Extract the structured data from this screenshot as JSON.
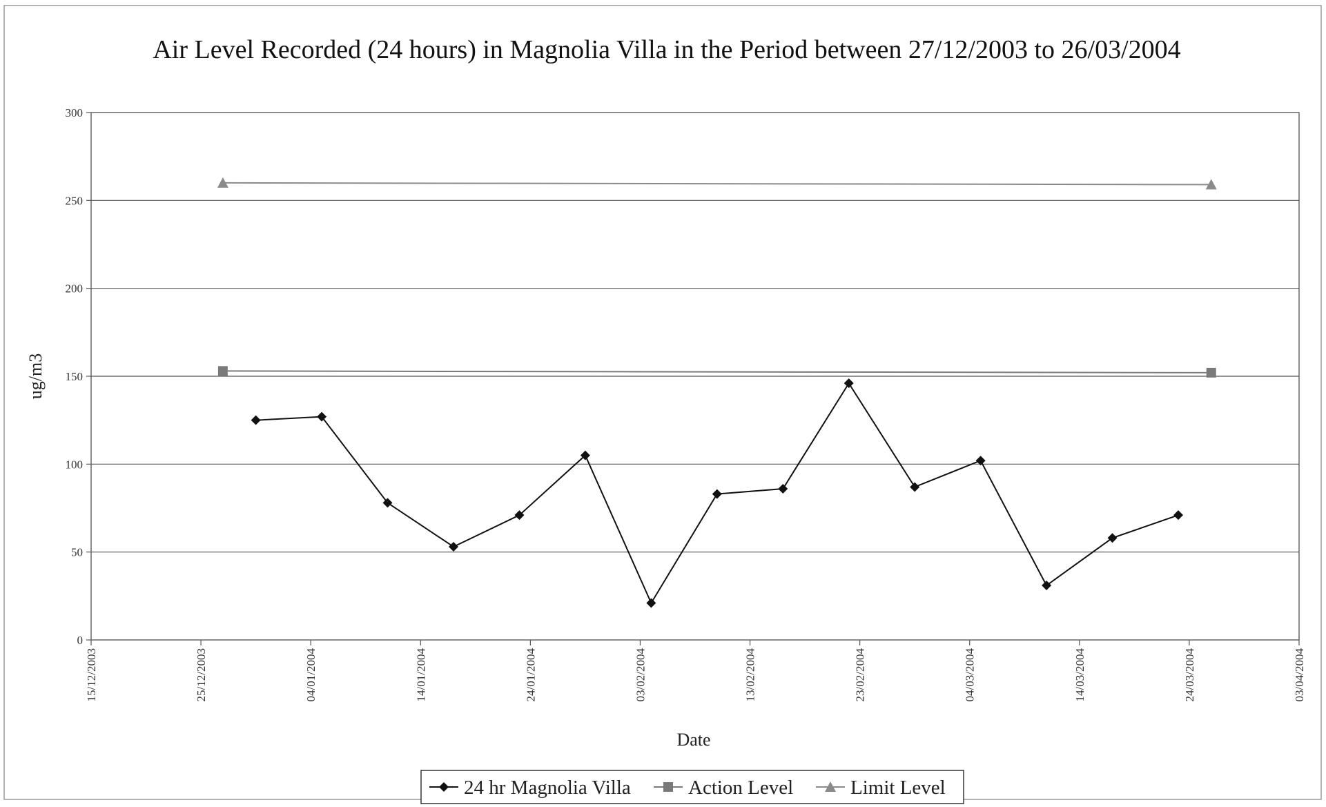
{
  "chart_data": {
    "type": "line",
    "title": "Air Level Recorded (24 hours) in Magnolia Villa in the Period between 27/12/2003 to 26/03/2004",
    "xlabel": "Date",
    "ylabel": "ug/m3",
    "xlim": [
      "15/12/2003",
      "03/04/2004"
    ],
    "ylim": [
      0,
      300
    ],
    "x_ticks": [
      "15/12/2003",
      "25/12/2003",
      "04/01/2004",
      "14/01/2004",
      "24/01/2004",
      "03/02/2004",
      "13/02/2004",
      "23/02/2004",
      "04/03/2004",
      "14/03/2004",
      "24/03/2004",
      "03/04/2004"
    ],
    "y_ticks": [
      0,
      50,
      100,
      150,
      200,
      250,
      300
    ],
    "grid": "horizontal",
    "legend_position": "bottom",
    "series": [
      {
        "name": "24 hr Magnolia Villa",
        "marker": "diamond",
        "color": "#111111",
        "points": [
          {
            "x": "30/12/2003",
            "y": 125
          },
          {
            "x": "05/01/2004",
            "y": 127
          },
          {
            "x": "11/01/2004",
            "y": 78
          },
          {
            "x": "17/01/2004",
            "y": 53
          },
          {
            "x": "23/01/2004",
            "y": 71
          },
          {
            "x": "29/01/2004",
            "y": 105
          },
          {
            "x": "04/02/2004",
            "y": 21
          },
          {
            "x": "10/02/2004",
            "y": 83
          },
          {
            "x": "16/02/2004",
            "y": 86
          },
          {
            "x": "22/02/2004",
            "y": 146
          },
          {
            "x": "28/02/2004",
            "y": 87
          },
          {
            "x": "05/03/2004",
            "y": 102
          },
          {
            "x": "11/03/2004",
            "y": 31
          },
          {
            "x": "17/03/2004",
            "y": 58
          },
          {
            "x": "23/03/2004",
            "y": 71
          }
        ]
      },
      {
        "name": "Action Level",
        "marker": "square",
        "color": "#7a7a7a",
        "points": [
          {
            "x": "27/12/2003",
            "y": 153
          },
          {
            "x": "26/03/2004",
            "y": 152
          }
        ]
      },
      {
        "name": "Limit Level",
        "marker": "triangle",
        "color": "#8a8a8a",
        "points": [
          {
            "x": "27/12/2003",
            "y": 260
          },
          {
            "x": "26/03/2004",
            "y": 259
          }
        ]
      }
    ]
  }
}
